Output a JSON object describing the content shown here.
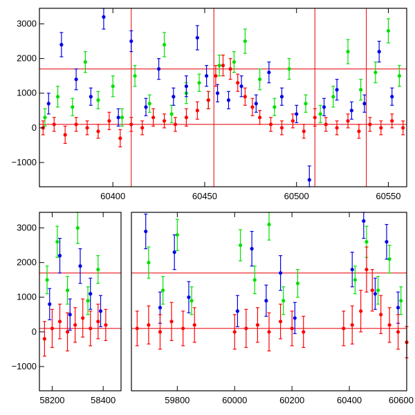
{
  "colors": {
    "green": "#00e000",
    "blue": "#0000e6",
    "red": "#ff0000",
    "frame": "#000000",
    "reference_line": "#e8141a"
  },
  "chart_data": [
    {
      "type": "scatter",
      "panel": "top",
      "title": "",
      "xlabel": "",
      "ylabel": "",
      "xlim": [
        60360,
        60560
      ],
      "ylim": [
        -1700,
        3450
      ],
      "grid": false,
      "legend": "none",
      "x_ticks": [
        60400,
        60450,
        60500,
        60550
      ],
      "y_ticks": [
        -1000,
        0,
        1000,
        2000,
        3000
      ],
      "x_tick_labels": [
        "60400",
        "60450",
        "60500",
        "60550"
      ],
      "y_tick_labels": [
        "−1000",
        "0",
        "1000",
        "2000",
        "3000"
      ],
      "horizontal_lines": [
        100,
        1700
      ],
      "vertical_lines": [
        60410,
        60455,
        60510,
        60538
      ],
      "series": [
        {
          "color": "green",
          "x": [
            60363,
            60370,
            60378,
            60385,
            60392,
            60400,
            60405,
            60412,
            60420,
            60428,
            60432,
            60440,
            60447,
            60452,
            60458,
            60466,
            60472,
            60480,
            60488,
            60496,
            60505,
            60513,
            60520,
            60528,
            60535,
            60543,
            60550,
            60556
          ],
          "y": [
            300,
            900,
            600,
            1900,
            800,
            1200,
            300,
            1500,
            700,
            2400,
            400,
            1000,
            1300,
            800,
            1800,
            1900,
            2500,
            1400,
            600,
            1700,
            700,
            400,
            900,
            2200,
            1100,
            1600,
            2800,
            1500
          ],
          "err": [
            250,
            300,
            250,
            300,
            250,
            300,
            250,
            300,
            250,
            350,
            250,
            300,
            250,
            250,
            300,
            300,
            350,
            300,
            250,
            300,
            250,
            250,
            300,
            350,
            300,
            300,
            350,
            300
          ]
        },
        {
          "color": "blue",
          "x": [
            60365,
            60372,
            60380,
            60388,
            60395,
            60403,
            60410,
            60418,
            60425,
            60433,
            60440,
            60446,
            60451,
            60457,
            60463,
            60470,
            60478,
            60485,
            60492,
            60500,
            60507,
            60515,
            60522,
            60530,
            60537,
            60545,
            60552
          ],
          "y": [
            700,
            2400,
            1400,
            900,
            3200,
            300,
            2500,
            600,
            1700,
            900,
            1200,
            2600,
            1500,
            1000,
            800,
            1200,
            700,
            1600,
            900,
            400,
            -1500,
            600,
            1100,
            500,
            700,
            2200,
            900
          ],
          "err": [
            300,
            350,
            300,
            250,
            350,
            250,
            300,
            250,
            300,
            250,
            300,
            350,
            300,
            250,
            250,
            300,
            250,
            300,
            250,
            250,
            400,
            250,
            300,
            250,
            250,
            300,
            250
          ]
        },
        {
          "color": "red",
          "x": [
            60362,
            60368,
            60374,
            60380,
            60386,
            60392,
            60398,
            60404,
            60410,
            60416,
            60422,
            60428,
            60434,
            60440,
            60446,
            60452,
            60456,
            60460,
            60464,
            60468,
            60472,
            60476,
            60480,
            60486,
            60492,
            60498,
            60504,
            60510,
            60516,
            60522,
            60528,
            60534,
            60540,
            60546,
            60552,
            60558
          ],
          "y": [
            0,
            100,
            -200,
            100,
            0,
            -100,
            200,
            -300,
            100,
            0,
            300,
            200,
            100,
            300,
            500,
            800,
            1500,
            1800,
            1700,
            1300,
            900,
            600,
            300,
            100,
            0,
            200,
            -100,
            300,
            100,
            0,
            200,
            -100,
            100,
            0,
            200,
            0
          ],
          "err": [
            200,
            200,
            250,
            200,
            200,
            200,
            250,
            250,
            200,
            200,
            250,
            200,
            200,
            250,
            250,
            250,
            300,
            300,
            300,
            250,
            250,
            250,
            200,
            200,
            200,
            200,
            200,
            250,
            200,
            200,
            200,
            200,
            200,
            200,
            200,
            200
          ]
        }
      ]
    },
    {
      "type": "scatter",
      "panel": "bottom",
      "title": "",
      "xlabel": "",
      "ylabel": "",
      "ylim": [
        -1700,
        3450
      ],
      "grid": false,
      "legend": "none",
      "broken_x_axis": true,
      "segments": [
        {
          "xlim": [
            58150,
            58470
          ],
          "x_ticks": [
            58200,
            58400
          ],
          "x_tick_labels": [
            "58200",
            "58400"
          ]
        },
        {
          "xlim": [
            59640,
            60600
          ],
          "x_ticks": [
            59800,
            60000,
            60200,
            60400,
            60600
          ],
          "x_tick_labels": [
            "59800",
            "60000",
            "60200",
            "60400",
            "60600"
          ]
        }
      ],
      "y_ticks": [
        -1000,
        0,
        1000,
        2000,
        3000
      ],
      "y_tick_labels": [
        "−1000",
        "0",
        "1000",
        "2000",
        "3000"
      ],
      "horizontal_lines": [
        100,
        1700
      ],
      "series": [
        {
          "color": "green",
          "x": [
            58180,
            58220,
            58260,
            58300,
            58340,
            58380,
            59700,
            59750,
            59800,
            59850,
            60020,
            60070,
            60120,
            60170,
            60220,
            60420,
            60460,
            60500,
            60540,
            60580
          ],
          "y": [
            1500,
            2600,
            1200,
            3000,
            900,
            1800,
            2000,
            1200,
            2800,
            900,
            2500,
            1500,
            3100,
            900,
            1400,
            1500,
            2600,
            1200,
            2100,
            900
          ],
          "err": [
            400,
            450,
            400,
            450,
            400,
            400,
            450,
            400,
            450,
            400,
            450,
            400,
            450,
            400,
            400,
            400,
            450,
            400,
            400,
            400
          ]
        },
        {
          "color": "blue",
          "x": [
            58190,
            58230,
            58270,
            58310,
            58350,
            58390,
            59690,
            59740,
            59790,
            59840,
            60010,
            60060,
            60110,
            60160,
            60210,
            60410,
            60450,
            60490,
            60530,
            60570
          ],
          "y": [
            800,
            2200,
            500,
            1900,
            1100,
            600,
            2900,
            700,
            2300,
            1000,
            600,
            2400,
            900,
            1700,
            400,
            1800,
            3200,
            1100,
            2600,
            700
          ],
          "err": [
            450,
            500,
            450,
            500,
            450,
            450,
            500,
            450,
            500,
            450,
            450,
            500,
            450,
            500,
            450,
            500,
            500,
            450,
            500,
            450
          ]
        },
        {
          "color": "red",
          "x": [
            58170,
            58200,
            58230,
            58260,
            58290,
            58320,
            58350,
            58380,
            58410,
            59660,
            59700,
            59740,
            59780,
            59820,
            59860,
            60000,
            60040,
            60080,
            60120,
            60160,
            60200,
            60240,
            60380,
            60410,
            60440,
            60460,
            60480,
            60510,
            60540,
            60570,
            60600
          ],
          "y": [
            -200,
            100,
            300,
            0,
            200,
            400,
            100,
            300,
            200,
            100,
            200,
            0,
            300,
            100,
            200,
            0,
            100,
            200,
            0,
            300,
            100,
            0,
            100,
            200,
            600,
            1800,
            1200,
            500,
            200,
            0,
            -300
          ],
          "err": [
            500,
            550,
            500,
            550,
            500,
            550,
            500,
            500,
            450,
            500,
            550,
            500,
            550,
            500,
            500,
            500,
            550,
            500,
            550,
            500,
            500,
            450,
            500,
            550,
            600,
            650,
            600,
            550,
            500,
            500,
            450
          ]
        }
      ]
    }
  ]
}
